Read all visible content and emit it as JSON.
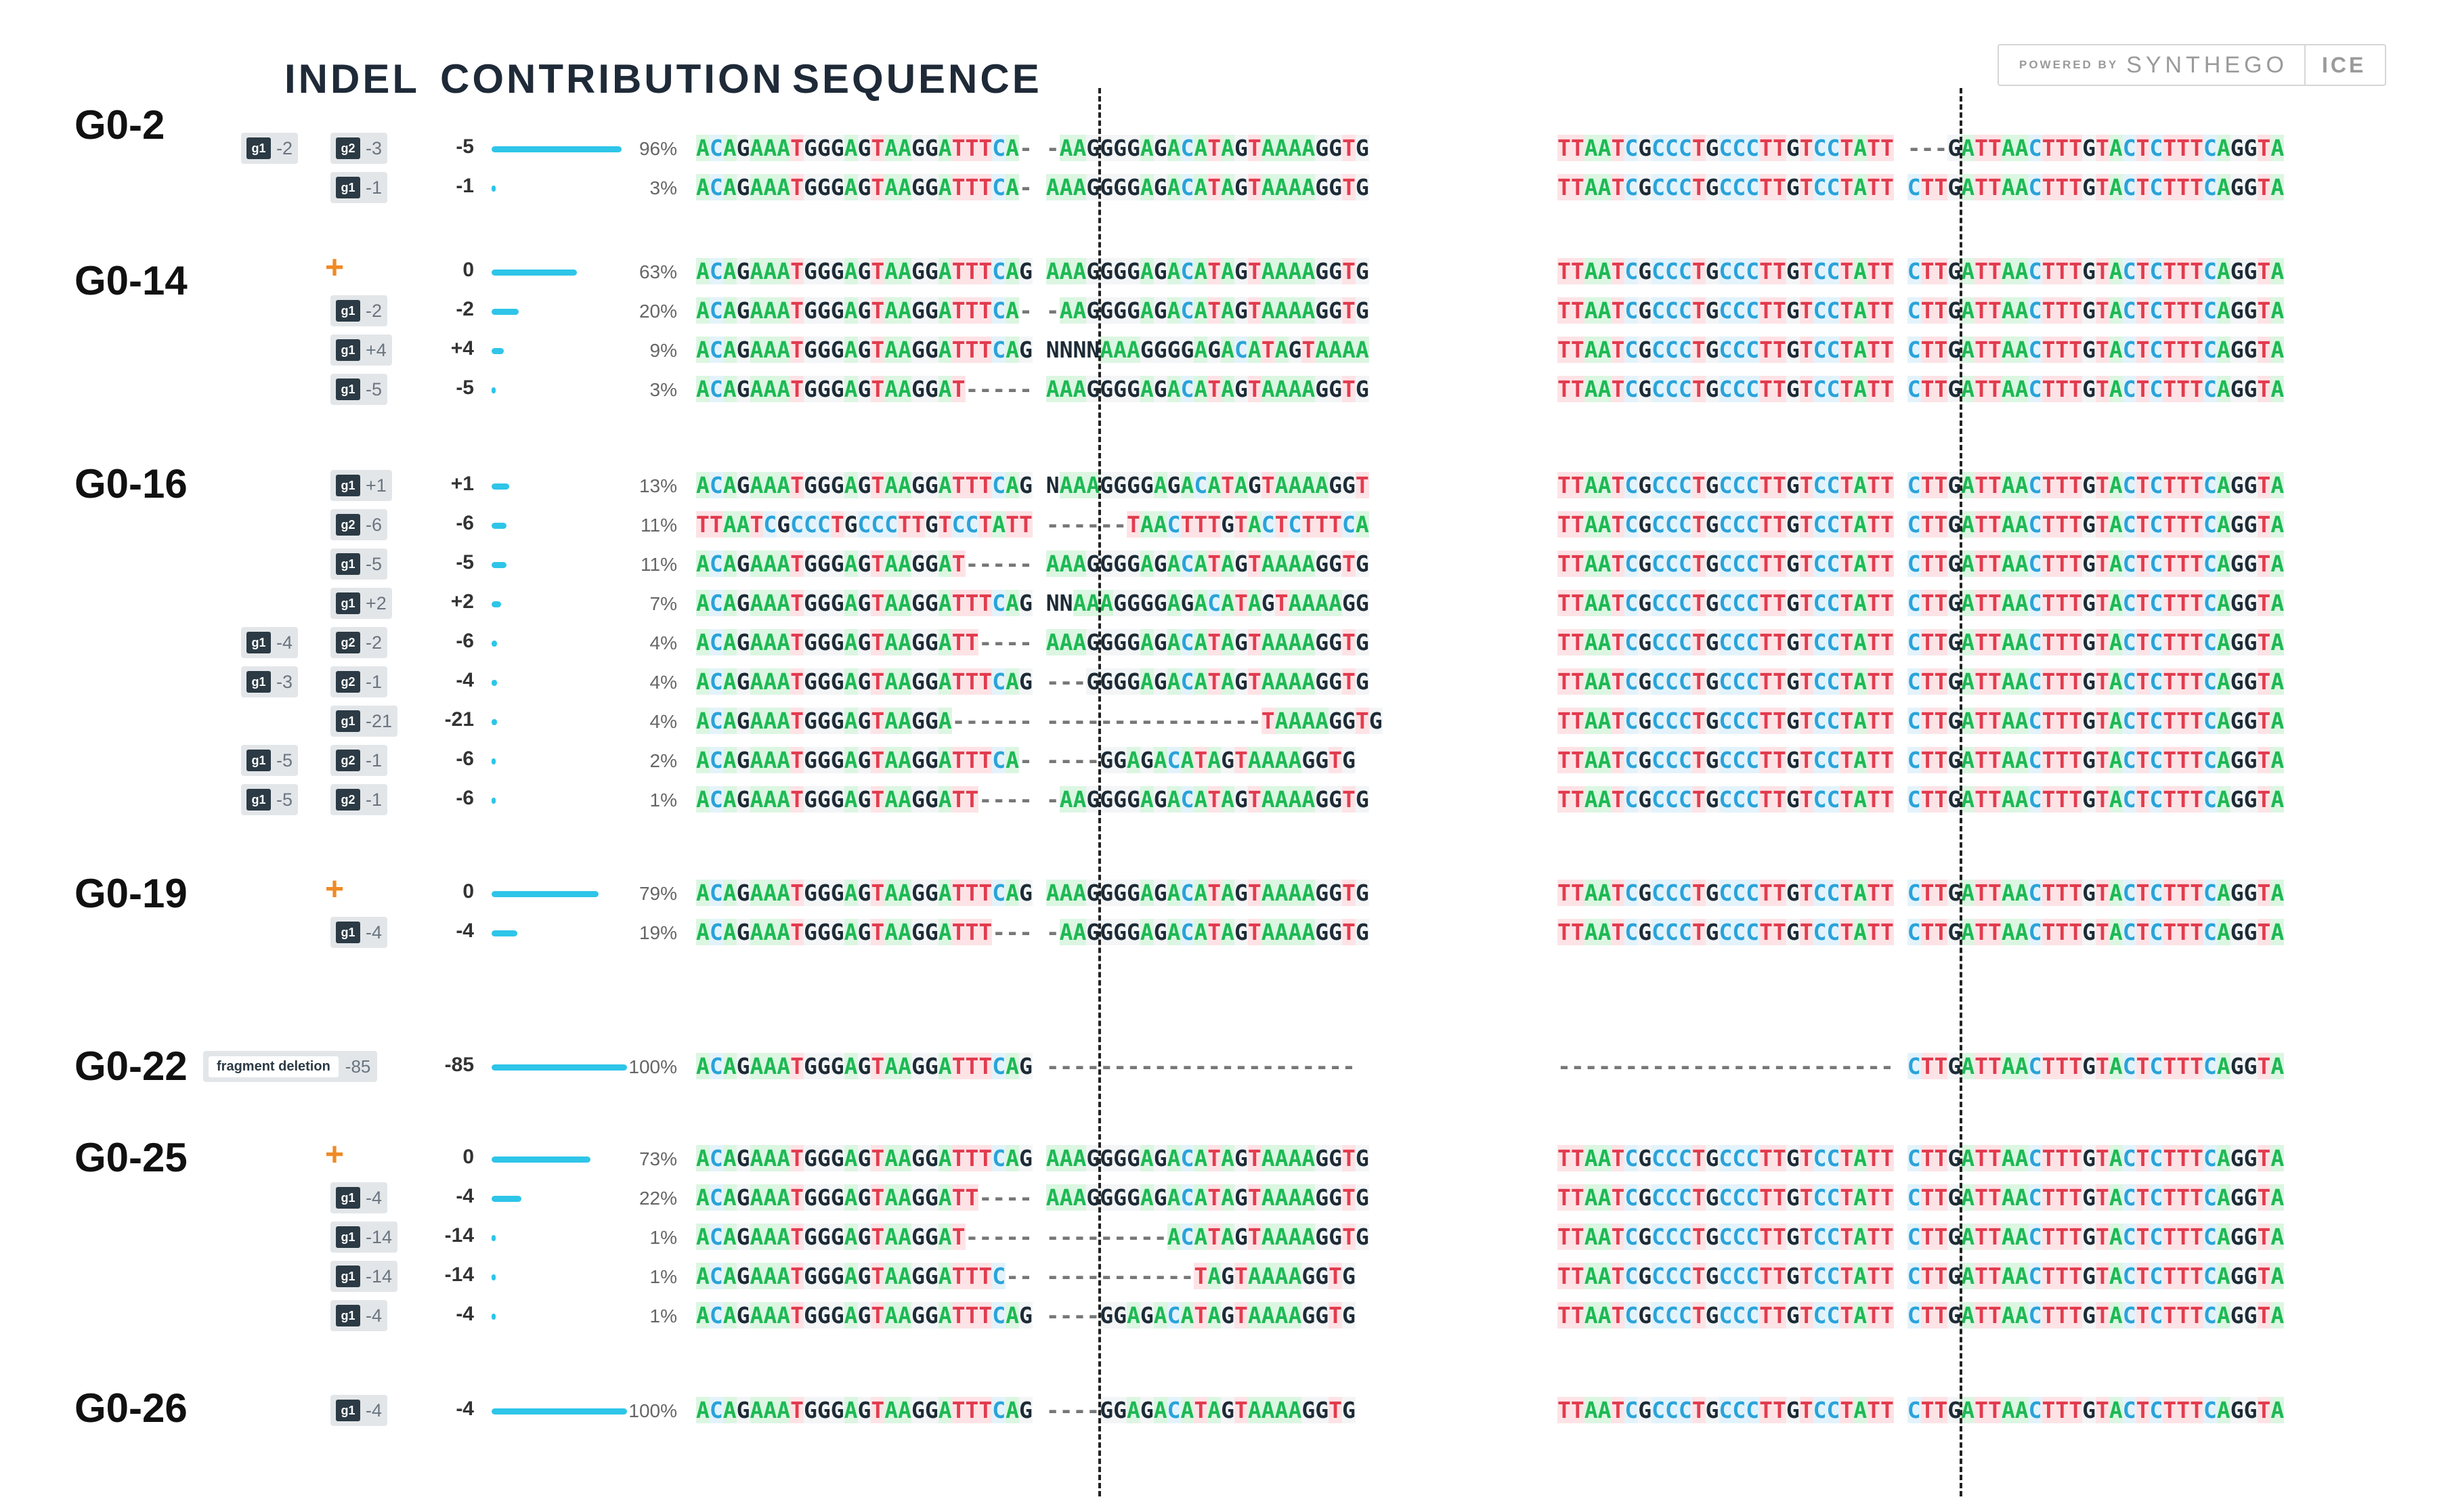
{
  "headers": {
    "indel": "INDEL",
    "contribution": "CONTRIBUTION",
    "sequence": "SEQUENCE"
  },
  "brand": {
    "powered_by": "POWERED BY",
    "name": "SYNTHEGO",
    "product": "ICE"
  },
  "colors": {
    "A": "#1db954",
    "C": "#2aa3d9",
    "G": "#1d2b36",
    "T": "#e23b4e",
    "bar": "#2ec5e8",
    "plus": "#f08a24"
  },
  "samples": [
    {
      "name": "G0-2",
      "rows": [
        {
          "badges": [
            {
              "g": "g1",
              "v": "-2"
            },
            {
              "g": "g2",
              "v": "-3"
            }
          ],
          "indel": "-5",
          "pct": "96%",
          "frac": 0.96,
          "left": "ACAGAAATGGGAGTAAGGATTTCA-|-AAGGGGAGACATAGTAAAAGGTG",
          "right": "TTAATCGCCCTGCCCTTGTCCTATT|---GATTAACTTTGTACTCTTTCAGGTA"
        },
        {
          "badges": [
            {
              "g": "g1",
              "v": "-1"
            }
          ],
          "indel": "-1",
          "pct": "3%",
          "frac": 0.03,
          "left": "ACAGAAATGGGAGTAAGGATTTCA-|AAAGGGGAGACATAGTAAAAGGTG",
          "right": "TTAATCGCCCTGCCCTTGTCCTATT|CTTGATTAACTTTGTACTCTTTCAGGTA"
        }
      ]
    },
    {
      "name": "G0-14",
      "rows": [
        {
          "plus": "+",
          "badges": [],
          "indel": "0",
          "pct": "63%",
          "frac": 0.63,
          "left": "ACAGAAATGGGAGTAAGGATTTCAG|AAAGGGGAGACATAGTAAAAGGTG",
          "right": "TTAATCGCCCTGCCCTTGTCCTATT|CTTGATTAACTTTGTACTCTTTCAGGTA"
        },
        {
          "badges": [
            {
              "g": "g1",
              "v": "-2"
            }
          ],
          "indel": "-2",
          "pct": "20%",
          "frac": 0.2,
          "left": "ACAGAAATGGGAGTAAGGATTTCA-|-AAGGGGAGACATAGTAAAAGGTG",
          "right": "TTAATCGCCCTGCCCTTGTCCTATT|CTTGATTAACTTTGTACTCTTTCAGGTA"
        },
        {
          "badges": [
            {
              "g": "g1",
              "v": "+4"
            }
          ],
          "indel": "+4",
          "pct": "9%",
          "frac": 0.09,
          "left": "ACAGAAATGGGAGTAAGGATTTCAG|NNNNAAAGGGGAGACATAGTAAAA",
          "right": "TTAATCGCCCTGCCCTTGTCCTATT|CTTGATTAACTTTGTACTCTTTCAGGTA"
        },
        {
          "badges": [
            {
              "g": "g1",
              "v": "-5"
            }
          ],
          "indel": "-5",
          "pct": "3%",
          "frac": 0.03,
          "left": "ACAGAAATGGGAGTAAGGAT-----|AAAGGGGAGACATAGTAAAAGGTG",
          "right": "TTAATCGCCCTGCCCTTGTCCTATT|CTTGATTAACTTTGTACTCTTTCAGGTA"
        }
      ]
    },
    {
      "name": "G0-16",
      "rows": [
        {
          "badges": [
            {
              "g": "g1",
              "v": "+1"
            }
          ],
          "indel": "+1",
          "pct": "13%",
          "frac": 0.13,
          "left": "ACAGAAATGGGAGTAAGGATTTCAG|NAAAGGGGAGACATAGTAAAAGGT",
          "right": "TTAATCGCCCTGCCCTTGTCCTATT|CTTGATTAACTTTGTACTCTTTCAGGTA"
        },
        {
          "badges": [
            {
              "g": "g2",
              "v": "-6"
            }
          ],
          "indel": "-6",
          "pct": "11%",
          "frac": 0.11,
          "left": "TTAATCGCCCTGCCCTTGTCCTATT|------TAACTTTGTACTCTTTCA",
          "right": "TTAATCGCCCTGCCCTTGTCCTATT|CTTGATTAACTTTGTACTCTTTCAGGTA"
        },
        {
          "badges": [
            {
              "g": "g1",
              "v": "-5"
            }
          ],
          "indel": "-5",
          "pct": "11%",
          "frac": 0.11,
          "left": "ACAGAAATGGGAGTAAGGAT-----|AAAGGGGAGACATAGTAAAAGGTG",
          "right": "TTAATCGCCCTGCCCTTGTCCTATT|CTTGATTAACTTTGTACTCTTTCAGGTA"
        },
        {
          "badges": [
            {
              "g": "g1",
              "v": "+2"
            }
          ],
          "indel": "+2",
          "pct": "7%",
          "frac": 0.07,
          "left": "ACAGAAATGGGAGTAAGGATTTCAG|NNAAAGGGGAGACATAGTAAAAGG",
          "right": "TTAATCGCCCTGCCCTTGTCCTATT|CTTGATTAACTTTGTACTCTTTCAGGTA"
        },
        {
          "badges": [
            {
              "g": "g1",
              "v": "-4"
            },
            {
              "g": "g2",
              "v": "-2"
            }
          ],
          "indel": "-6",
          "pct": "4%",
          "frac": 0.04,
          "left": "ACAGAAATGGGAGTAAGGATT----|AAAGGGGAGACATAGTAAAAGGTG",
          "right": "TTAATCGCCCTGCCCTTGTCCTATT|CTTGATTAACTTTGTACTCTTTCAGGTA"
        },
        {
          "badges": [
            {
              "g": "g1",
              "v": "-3"
            },
            {
              "g": "g2",
              "v": "-1"
            }
          ],
          "indel": "-4",
          "pct": "4%",
          "frac": 0.04,
          "left": "ACAGAAATGGGAGTAAGGATTTCAG|---GGGGAGACATAGTAAAAGGTG",
          "right": "TTAATCGCCCTGCCCTTGTCCTATT|CTTGATTAACTTTGTACTCTTTCAGGTA"
        },
        {
          "badges": [
            {
              "g": "g1",
              "v": "-21"
            }
          ],
          "indel": "-21",
          "pct": "4%",
          "frac": 0.04,
          "left": "ACAGAAATGGGAGTAAGGA------|----------------TAAAAGGTG",
          "right": "TTAATCGCCCTGCCCTTGTCCTATT|CTTGATTAACTTTGTACTCTTTCAGGTA"
        },
        {
          "badges": [
            {
              "g": "g1",
              "v": "-5"
            },
            {
              "g": "g2",
              "v": "-1"
            }
          ],
          "indel": "-6",
          "pct": "2%",
          "frac": 0.02,
          "left": "ACAGAAATGGGAGTAAGGATTTCA-|----GGAGACATAGTAAAAGGTG",
          "right": "TTAATCGCCCTGCCCTTGTCCTATT|CTTGATTAACTTTGTACTCTTTCAGGTA"
        },
        {
          "badges": [
            {
              "g": "g1",
              "v": "-5"
            },
            {
              "g": "g2",
              "v": "-1"
            }
          ],
          "indel": "-6",
          "pct": "1%",
          "frac": 0.01,
          "left": "ACAGAAATGGGAGTAAGGATT----|-AAGGGGAGACATAGTAAAAGGTG",
          "right": "TTAATCGCCCTGCCCTTGTCCTATT|CTTGATTAACTTTGTACTCTTTCAGGTA"
        }
      ]
    },
    {
      "name": "G0-19",
      "rows": [
        {
          "plus": "+",
          "badges": [],
          "indel": "0",
          "pct": "79%",
          "frac": 0.79,
          "left": "ACAGAAATGGGAGTAAGGATTTCAG|AAAGGGGAGACATAGTAAAAGGTG",
          "right": "TTAATCGCCCTGCCCTTGTCCTATT|CTTGATTAACTTTGTACTCTTTCAGGTA"
        },
        {
          "badges": [
            {
              "g": "g1",
              "v": "-4"
            }
          ],
          "indel": "-4",
          "pct": "19%",
          "frac": 0.19,
          "left": "ACAGAAATGGGAGTAAGGATTT---|-AAGGGGAGACATAGTAAAAGGTG",
          "right": "TTAATCGCCCTGCCCTTGTCCTATT|CTTGATTAACTTTGTACTCTTTCAGGTA"
        }
      ]
    },
    {
      "name": "G0-22",
      "rows": [
        {
          "fragment": "fragment deletion",
          "fragment_value": "-85",
          "badges": [],
          "indel": "-85",
          "pct": "100%",
          "frac": 1.0,
          "left": "ACAGAAATGGGAGTAAGGATTTCAG|-----------------------",
          "right": "-------------------------|CTTGATTAACTTTGTACTCTTTCAGGTA"
        }
      ]
    },
    {
      "name": "G0-25",
      "rows": [
        {
          "plus": "+",
          "badges": [],
          "indel": "0",
          "pct": "73%",
          "frac": 0.73,
          "left": "ACAGAAATGGGAGTAAGGATTTCAG|AAAGGGGAGACATAGTAAAAGGTG",
          "right": "TTAATCGCCCTGCCCTTGTCCTATT|CTTGATTAACTTTGTACTCTTTCAGGTA"
        },
        {
          "badges": [
            {
              "g": "g1",
              "v": "-4"
            }
          ],
          "indel": "-4",
          "pct": "22%",
          "frac": 0.22,
          "left": "ACAGAAATGGGAGTAAGGATT----|AAAGGGGAGACATAGTAAAAGGTG",
          "right": "TTAATCGCCCTGCCCTTGTCCTATT|CTTGATTAACTTTGTACTCTTTCAGGTA"
        },
        {
          "badges": [
            {
              "g": "g1",
              "v": "-14"
            }
          ],
          "indel": "-14",
          "pct": "1%",
          "frac": 0.01,
          "left": "ACAGAAATGGGAGTAAGGAT-----|---------ACATAGTAAAAGGTG",
          "right": "TTAATCGCCCTGCCCTTGTCCTATT|CTTGATTAACTTTGTACTCTTTCAGGTA"
        },
        {
          "badges": [
            {
              "g": "g1",
              "v": "-14"
            }
          ],
          "indel": "-14",
          "pct": "1%",
          "frac": 0.01,
          "left": "ACAGAAATGGGAGTAAGGATTTC--|-----------TAGTAAAAGGTG",
          "right": "TTAATCGCCCTGCCCTTGTCCTATT|CTTGATTAACTTTGTACTCTTTCAGGTA"
        },
        {
          "badges": [
            {
              "g": "g1",
              "v": "-4"
            }
          ],
          "indel": "-4",
          "pct": "1%",
          "frac": 0.01,
          "left": "ACAGAAATGGGAGTAAGGATTTCAG|----GGAGACATAGTAAAAGGTG",
          "right": "TTAATCGCCCTGCCCTTGTCCTATT|CTTGATTAACTTTGTACTCTTTCAGGTA"
        }
      ]
    },
    {
      "name": "G0-26",
      "rows": [
        {
          "badges": [
            {
              "g": "g1",
              "v": "-4"
            }
          ],
          "indel": "-4",
          "pct": "100%",
          "frac": 1.0,
          "left": "ACAGAAATGGGAGTAAGGATTTCAG|----GGAGACATAGTAAAAGGTG",
          "right": "TTAATCGCCCTGCCCTTGTCCTATT|CTTGATTAACTTTGTACTCTTTCAGGTA"
        }
      ]
    }
  ]
}
